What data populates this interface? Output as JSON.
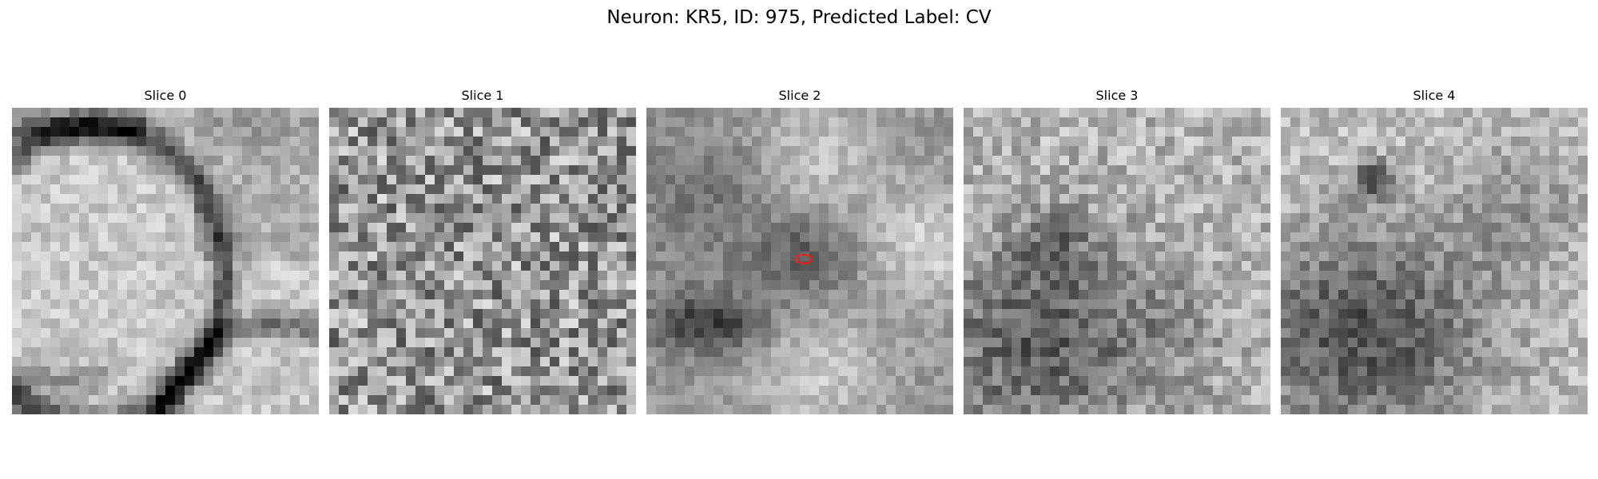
{
  "figure": {
    "title": "Neuron: KR5, ID: 975, Predicted Label: CV"
  },
  "slices": [
    {
      "label": "Slice 0",
      "image": "grayscale-EM-patch-membrane-curve"
    },
    {
      "label": "Slice 1",
      "image": "grayscale-EM-patch-noisy-texture"
    },
    {
      "label": "Slice 2",
      "image": "grayscale-EM-patch-dark-cross-with-marker"
    },
    {
      "label": "Slice 3",
      "image": "grayscale-EM-patch-dark-lower-left"
    },
    {
      "label": "Slice 4",
      "image": "grayscale-EM-patch-dark-blob-lower-left"
    }
  ],
  "marker": {
    "slice_index": 2,
    "shape": "ellipse",
    "color": "#ff1a1a"
  }
}
